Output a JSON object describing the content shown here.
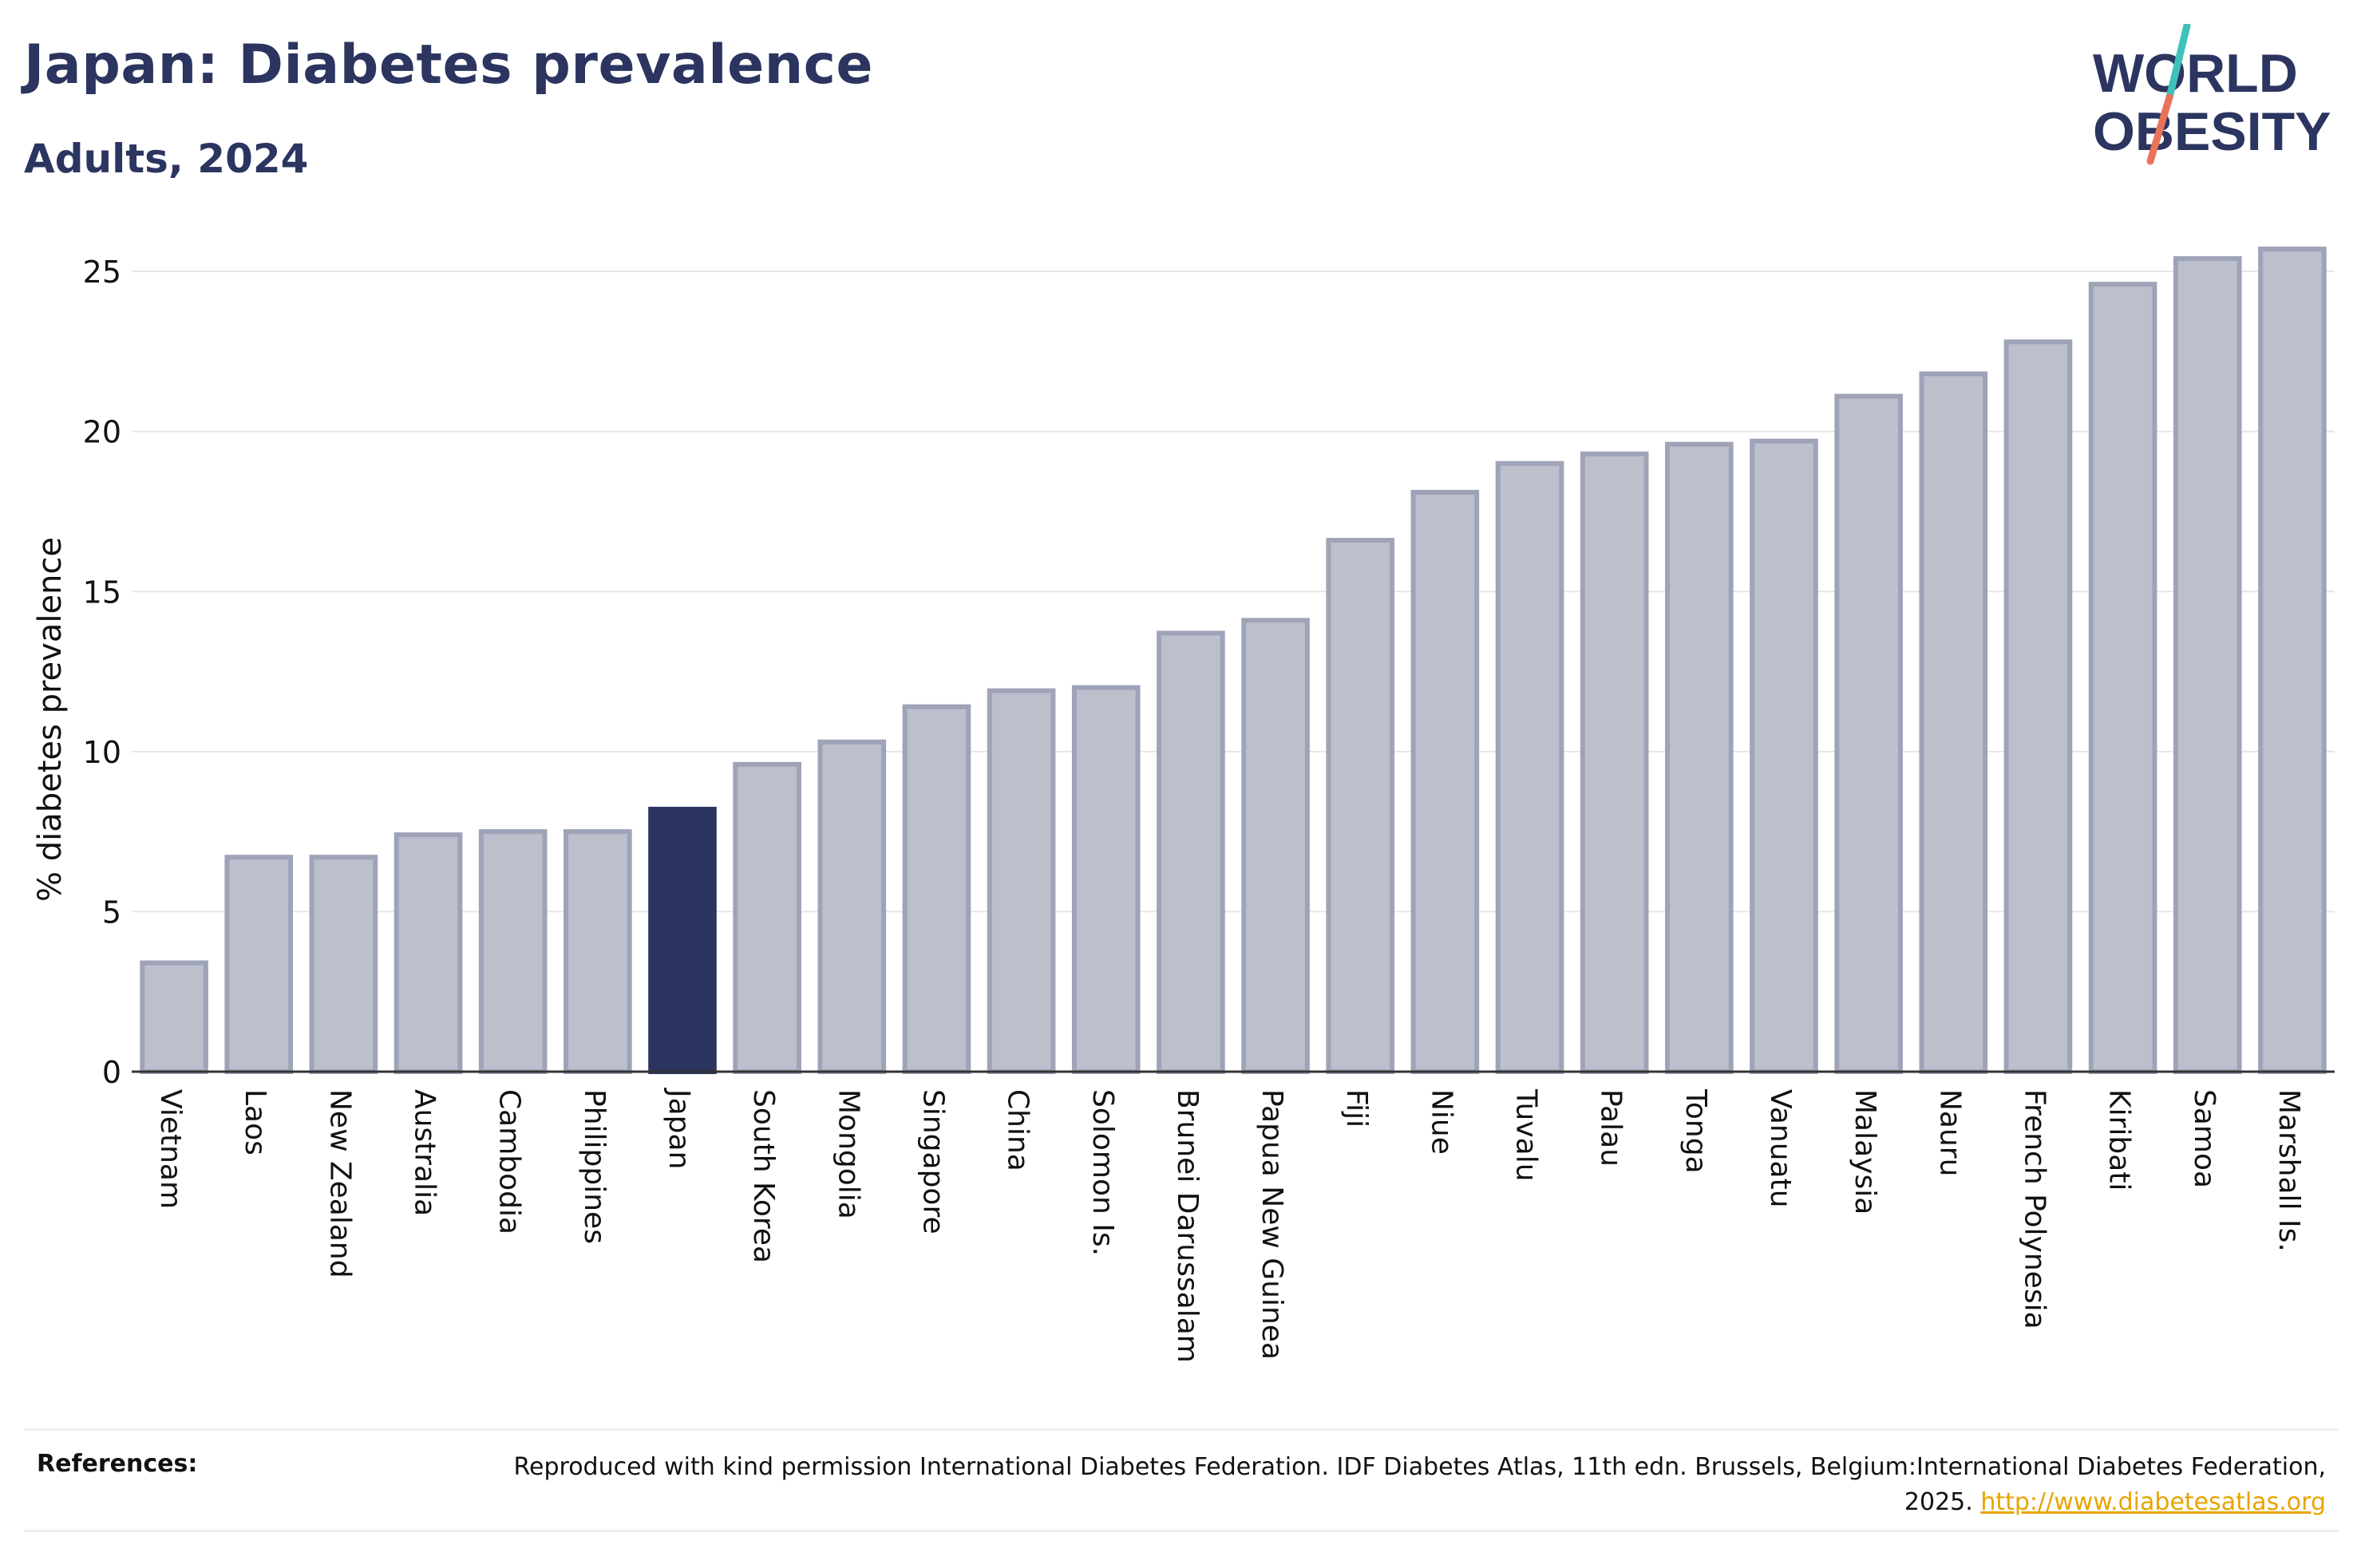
{
  "header": {
    "title": "Japan: Diabetes prevalence",
    "subtitle": "Adults, 2024"
  },
  "logo": {
    "line1": "WORLD",
    "line2": "OBESITY",
    "slash_colors": [
      "#3fc1b9",
      "#e8735a"
    ],
    "text_color": "#2b3560"
  },
  "chart_data": {
    "type": "bar",
    "ylabel": "% diabetes prevalence",
    "xlabel": "",
    "ylim": [
      0,
      26
    ],
    "yticks": [
      0,
      5,
      10,
      15,
      20,
      25
    ],
    "grid": true,
    "highlight": "Japan",
    "colors": {
      "bar_fill": "#bcc0cd",
      "bar_stroke": "#9ea3b8",
      "highlight_fill": "#2b3560",
      "grid": "#e6e6e6",
      "axis": "#333333"
    },
    "categories": [
      "Vietnam",
      "Laos",
      "New Zealand",
      "Australia",
      "Cambodia",
      "Philippines",
      "Japan",
      "South Korea",
      "Mongolia",
      "Singapore",
      "China",
      "Solomon Is.",
      "Brunei Darussalam",
      "Papua New Guinea",
      "Fiji",
      "Niue",
      "Tuvalu",
      "Palau",
      "Tonga",
      "Vanuatu",
      "Malaysia",
      "Nauru",
      "French Polynesia",
      "Kiribati",
      "Samoa",
      "Marshall Is."
    ],
    "values": [
      3.4,
      6.7,
      6.7,
      7.4,
      7.5,
      7.5,
      8.2,
      9.6,
      10.3,
      11.4,
      11.9,
      12.0,
      13.7,
      14.1,
      16.6,
      18.1,
      19.0,
      19.3,
      19.6,
      19.7,
      21.1,
      21.8,
      22.8,
      24.6,
      25.4,
      25.7
    ]
  },
  "references": {
    "label": "References:",
    "text": "Reproduced with kind permission International Diabetes Federation. IDF Diabetes Atlas, 11th edn. Brussels, Belgium:International Diabetes Federation, 2025. ",
    "link": "http://www.diabetesatlas.org"
  }
}
